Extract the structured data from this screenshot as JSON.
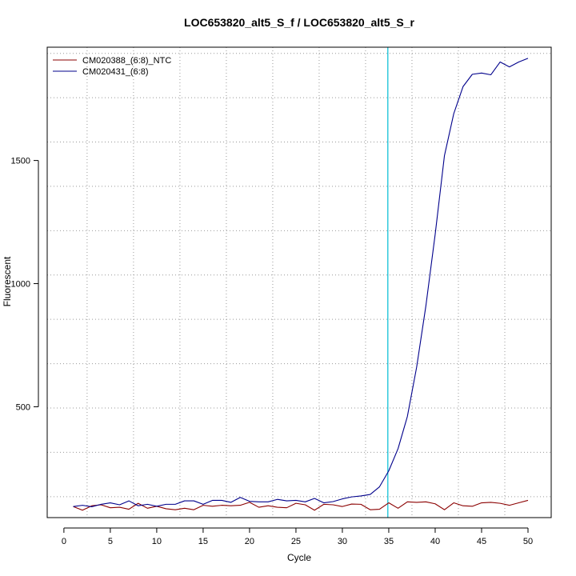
{
  "chart_data": {
    "type": "line",
    "title": "LOC653820_alt5_S_f / LOC653820_alt5_S_r",
    "xlabel": "Cycle",
    "ylabel": "Fluorescent",
    "xlim": [
      -1.8,
      52.5
    ],
    "ylim": [
      50,
      1960
    ],
    "x_ticks": [
      0,
      5,
      10,
      15,
      20,
      25,
      30,
      35,
      40,
      45,
      50
    ],
    "x_tick_labels": [
      "0",
      "5",
      "10",
      "15",
      "20",
      "25",
      "30",
      "35",
      "40",
      "45",
      "50"
    ],
    "y_ticks": [
      500,
      1000,
      1500
    ],
    "y_tick_labels": [
      "500",
      "1000",
      "1500"
    ],
    "x_grid": [
      2.5,
      7.5,
      12.5,
      17.5,
      22.5,
      27.5,
      32.5,
      37.5,
      42.5,
      47.5
    ],
    "y_grid": [
      135,
      315,
      495,
      675,
      855,
      1035,
      1215,
      1395,
      1575,
      1755,
      1935
    ],
    "grid": true,
    "threshold_x": 34.9,
    "threshold_color": "#00bcd4",
    "legend_position": "top-left",
    "x": [
      1,
      2,
      3,
      4,
      5,
      6,
      7,
      8,
      9,
      10,
      11,
      12,
      13,
      14,
      15,
      16,
      17,
      18,
      19,
      20,
      21,
      22,
      23,
      24,
      25,
      26,
      27,
      28,
      29,
      30,
      31,
      32,
      33,
      34,
      35,
      36,
      37,
      38,
      39,
      40,
      41,
      42,
      43,
      44,
      45,
      46,
      47,
      48,
      49,
      50
    ],
    "series": [
      {
        "name": "CM020388_(6:8)_NTC",
        "color": "#8b0000",
        "values": [
          95,
          80,
          98,
          102,
          90,
          92,
          84,
          108,
          88,
          96,
          86,
          82,
          88,
          82,
          100,
          96,
          100,
          98,
          100,
          112,
          92,
          98,
          92,
          90,
          108,
          102,
          80,
          104,
          102,
          95,
          105,
          104,
          82,
          84,
          110,
          88,
          114,
          112,
          114,
          106,
          82,
          110,
          98,
          96,
          110,
          112,
          108,
          100,
          110,
          120
        ]
      },
      {
        "name": "CM020431_(6:8)",
        "color": "#00008b",
        "values": [
          95,
          100,
          94,
          104,
          110,
          102,
          118,
          98,
          104,
          96,
          104,
          104,
          118,
          118,
          104,
          120,
          120,
          112,
          132,
          116,
          114,
          114,
          124,
          118,
          120,
          114,
          128,
          110,
          115,
          126,
          134,
          138,
          144,
          175,
          240,
          330,
          460,
          660,
          910,
          1200,
          1520,
          1690,
          1800,
          1850,
          1855,
          1848,
          1900,
          1880,
          1900,
          1915
        ]
      }
    ]
  }
}
